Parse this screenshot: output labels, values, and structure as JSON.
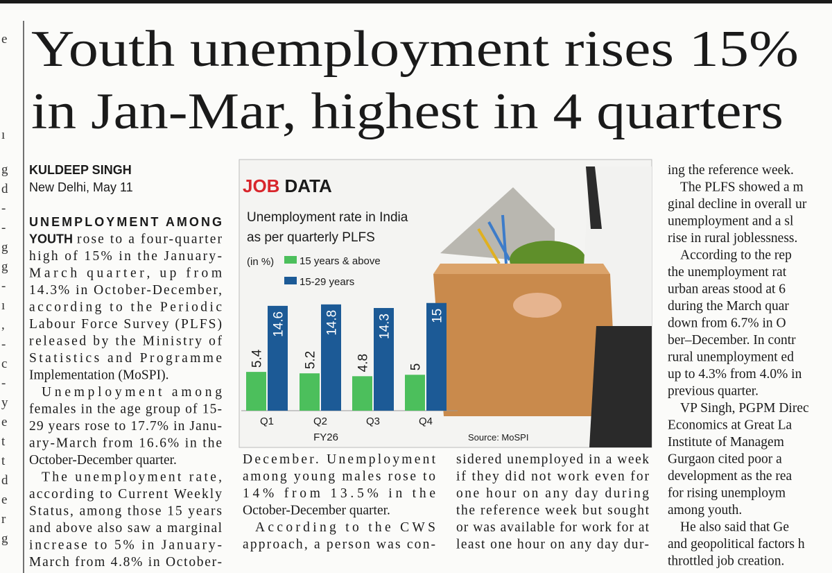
{
  "headline": [
    "Youth unemployment rises 15%",
    "in Jan-Mar, highest in 4 quarters"
  ],
  "byline": {
    "author": "KULDEEP SINGH",
    "dateline": "New Delhi, May 11"
  },
  "left_edge_fragments": [
    "e",
    "ı",
    "g",
    "d",
    "-",
    "-",
    "g",
    "g",
    "-",
    "ı",
    ",",
    "-",
    "c",
    "-",
    "y",
    "e",
    "t",
    "t",
    "d",
    "e",
    "r",
    "g"
  ],
  "article": {
    "kicker": [
      "UNEMPLOYMENT AMONG",
      "YOUTH"
    ],
    "columns": [
      [
        "rose to a four-quarter",
        "high of 15% in the January-",
        "March quarter, up from",
        "14.3% in October-December,",
        "according to the Periodic",
        "Labour Force Survey (PLFS)",
        "released by the Ministry of",
        "Statistics and Programme",
        "Implementation (MoSPI).",
        "Unemployment among",
        "females in the age group of 15-",
        "29 years rose to 17.7% in Janu-",
        "ary-March from 16.6% in the",
        "October-December quarter.",
        "The unemployment rate,",
        "according to Current Weekly",
        "Status, among those 15 years",
        "and above also saw a marginal",
        "increase to 5% in January-",
        "March from 4.8% in October-"
      ],
      [
        "December. Unemployment",
        "among young males rose to",
        "14% from 13.5% in the",
        "October-December quarter.",
        "According to the CWS",
        "approach, a person was con-"
      ],
      [
        "sidered unemployed in a week",
        "if they did not work even for",
        "one hour on any day during",
        "the reference week but sought",
        "or was available for work for at",
        "least one hour on any day dur-"
      ],
      [
        "ing the reference week.",
        "The PLFS showed a m",
        "ginal decline in overall ur",
        "unemployment and a sl",
        "rise in rural joblessness.",
        "According to the rep",
        "the unemployment rat",
        "urban areas stood at 6",
        "during the March quar",
        "down from 6.7% in O",
        "ber–December. In contr",
        "rural unemployment ed",
        "up to 4.3% from 4.0% in",
        "previous quarter.",
        "VP Singh, PGPM Direc",
        "Economics at Great La",
        "Institute of Managem",
        "Gurgaon cited poor a",
        "development as the rea",
        "for rising unemploym",
        "among youth.",
        "He also said that Ge",
        "and geopolitical factors h",
        "throttled job creation."
      ]
    ]
  },
  "chart_data": {
    "type": "bar",
    "kicker": [
      "JOB",
      "DATA"
    ],
    "title": [
      "Unemployment rate in India",
      "as per quarterly PLFS"
    ],
    "unit": "(in %)",
    "categories": [
      "Q1",
      "Q2",
      "Q3",
      "Q4"
    ],
    "xlabel": "FY26",
    "series": [
      {
        "name": "15 years & above",
        "color": "#4cbf5c",
        "values": [
          5.4,
          5.2,
          4.8,
          5
        ]
      },
      {
        "name": "15-29 years",
        "color": "#1c5a96",
        "values": [
          14.6,
          14.8,
          14.3,
          15
        ]
      }
    ],
    "source": "Source: MoSPI"
  }
}
